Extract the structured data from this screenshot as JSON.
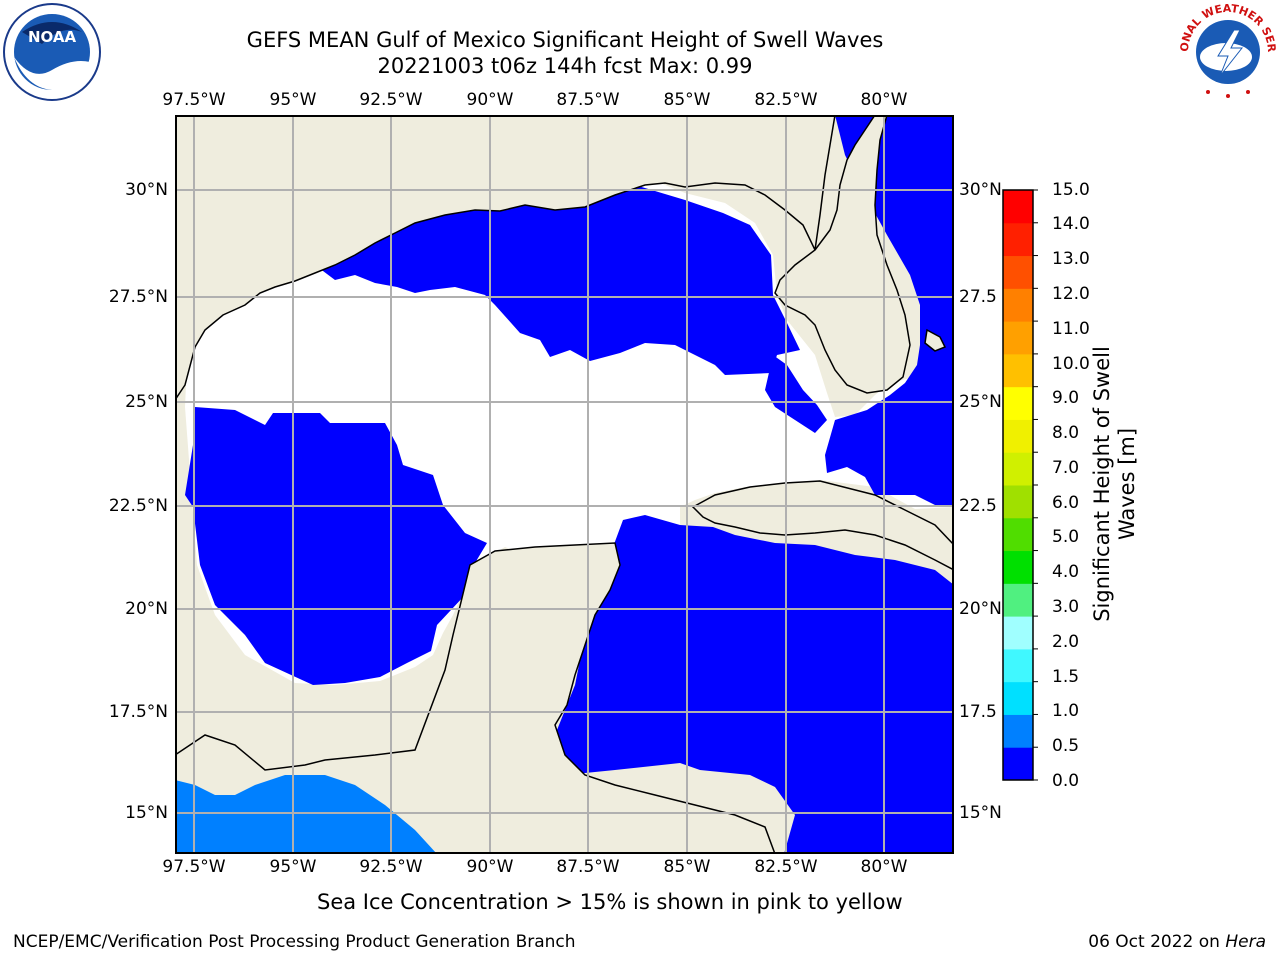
{
  "title": {
    "line1": "GEFS MEAN Gulf of Mexico Significant Height of Swell Waves",
    "line2": "20221003 t06z 144h fcst   Max: 0.99"
  },
  "map": {
    "lon_labels": [
      "97.5°W",
      "95°W",
      "92.5°W",
      "90°W",
      "87.5°W",
      "85°W",
      "82.5°W",
      "80°W"
    ],
    "lat_labels_left": [
      "30°N",
      "27.5°N",
      "25°N",
      "22.5°N",
      "20°N",
      "17.5°N",
      "15°N"
    ],
    "lat_labels_right": [
      "30°N",
      "27.5",
      "25°N",
      "22.5",
      "20°N",
      "17.5",
      "15°N"
    ],
    "colors": {
      "land": "#efedde",
      "sea_zero": "#ffffff",
      "swell_0_0": "#0000ff",
      "swell_0_5": "#0080ff",
      "grid": "#b0b0b0"
    }
  },
  "colorbar": {
    "label": "Significant Height of Swell Waves [m]",
    "label_line1": "Significant Height of Swell",
    "label_line2": "Waves [m]",
    "ticks": [
      "15.0",
      "14.0",
      "13.0",
      "12.0",
      "11.0",
      "10.0",
      "9.0",
      "8.0",
      "7.0",
      "6.0",
      "5.0",
      "4.0",
      "3.0",
      "2.0",
      "1.5",
      "1.0",
      "0.5",
      "0.0"
    ],
    "colors_bottom_to_top": [
      "#0000ff",
      "#0080ff",
      "#00e0ff",
      "#40f8ff",
      "#a0ffff",
      "#50f080",
      "#00e000",
      "#50dd00",
      "#a0e000",
      "#d0f000",
      "#f0f000",
      "#ffff00",
      "#ffc000",
      "#ffa000",
      "#ff8000",
      "#ff5000",
      "#ff2000",
      "#ff0000"
    ]
  },
  "note": "Sea Ice Concentration > 15% is shown in pink to yellow",
  "footer": {
    "left": "NCEP/EMC/Verification Post Processing Product Generation Branch",
    "right_prefix": "06 Oct 2022 on ",
    "right_machine": "Hera"
  },
  "logos": {
    "noaa": "NOAA",
    "nws": "NATIONAL WEATHER SERVICE"
  }
}
